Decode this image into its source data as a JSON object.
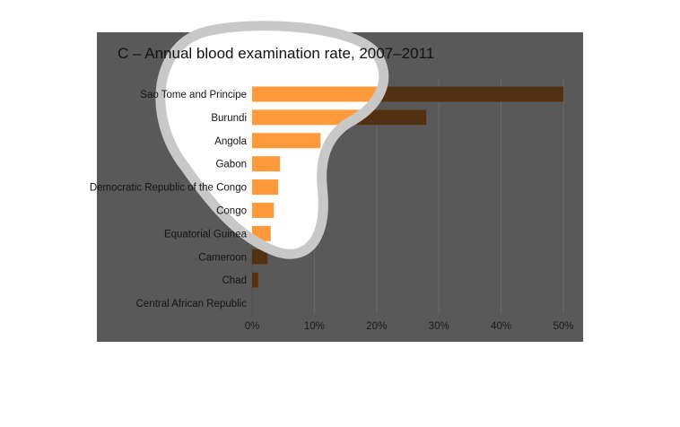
{
  "chart_data": {
    "type": "bar",
    "orientation": "horizontal",
    "panel": "C",
    "title": "C – Annual blood examination rate, 2007–2011",
    "categories": [
      "Sao Tome and Principe",
      "Burundi",
      "Angola",
      "Gabon",
      "Democratic Republic of the Congo",
      "Congo",
      "Equatorial Guinea",
      "Cameroon",
      "Chad",
      "Central African Republic"
    ],
    "values": [
      50,
      28,
      11,
      4.5,
      4.2,
      3.5,
      3,
      2.5,
      1,
      0
    ],
    "xlabel": "",
    "ylabel": "",
    "xlim": [
      0,
      50
    ],
    "xticks": [
      0,
      10,
      20,
      30,
      40,
      50
    ],
    "xtick_labels": [
      "0%",
      "10%",
      "20%",
      "30%",
      "40%",
      "50%"
    ],
    "grid": true,
    "colors": {
      "bar": "#ff9a3c",
      "background": "#595959",
      "gridline": "#6b6b6b",
      "highlight_outer": "#c8c8c8",
      "highlight_inner": "#ffffff",
      "text": "#141414"
    }
  }
}
